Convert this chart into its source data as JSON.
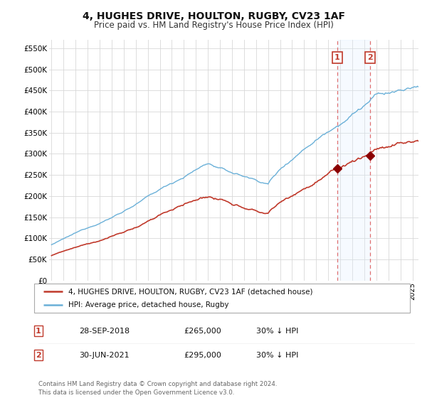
{
  "title": "4, HUGHES DRIVE, HOULTON, RUGBY, CV23 1AF",
  "subtitle": "Price paid vs. HM Land Registry's House Price Index (HPI)",
  "title_fontsize": 10,
  "subtitle_fontsize": 8.5,
  "ylabel_ticks": [
    "£0",
    "£50K",
    "£100K",
    "£150K",
    "£200K",
    "£250K",
    "£300K",
    "£350K",
    "£400K",
    "£450K",
    "£500K",
    "£550K"
  ],
  "ytick_values": [
    0,
    50000,
    100000,
    150000,
    200000,
    250000,
    300000,
    350000,
    400000,
    450000,
    500000,
    550000
  ],
  "ylim": [
    0,
    570000
  ],
  "xlim_start": 1994.8,
  "xlim_end": 2025.5,
  "hpi_color": "#6ab0d8",
  "price_color": "#c0392b",
  "dashed_line_color": "#e07070",
  "span_color": "#ddeeff",
  "background_color": "#ffffff",
  "grid_color": "#d8d8d8",
  "event1_x": 2018.74,
  "event1_y": 265000,
  "event1_label": "1",
  "event2_x": 2021.5,
  "event2_y": 295000,
  "event2_label": "2",
  "legend_label_price": "4, HUGHES DRIVE, HOULTON, RUGBY, CV23 1AF (detached house)",
  "legend_label_hpi": "HPI: Average price, detached house, Rugby",
  "table_rows": [
    {
      "num": "1",
      "date": "28-SEP-2018",
      "price": "£265,000",
      "note": "30% ↓ HPI"
    },
    {
      "num": "2",
      "date": "30-JUN-2021",
      "price": "£295,000",
      "note": "30% ↓ HPI"
    }
  ],
  "footer": "Contains HM Land Registry data © Crown copyright and database right 2024.\nThis data is licensed under the Open Government Licence v3.0."
}
